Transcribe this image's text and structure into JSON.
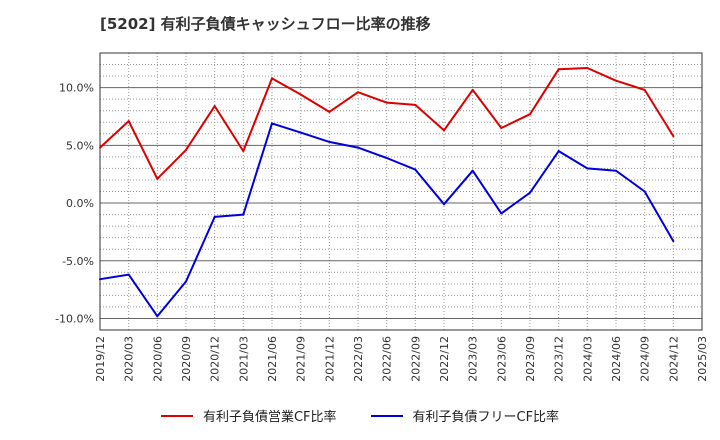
{
  "chart_data": {
    "type": "line",
    "title": "[5202]  有利子負債キャッシュフロー比率の推移",
    "xlabel": "",
    "ylabel": "",
    "x": [
      "2019/12",
      "2020/03",
      "2020/06",
      "2020/09",
      "2020/12",
      "2021/03",
      "2021/06",
      "2021/09",
      "2021/12",
      "2022/03",
      "2022/06",
      "2022/09",
      "2022/12",
      "2023/03",
      "2023/06",
      "2023/09",
      "2023/12",
      "2024/03",
      "2024/06",
      "2024/09",
      "2024/12",
      "2025/03"
    ],
    "ylim": [
      -11,
      13
    ],
    "yticks": [
      10,
      5,
      0,
      -5,
      -10
    ],
    "ytick_labels": [
      "10.0%",
      "5.0%",
      "0.0%",
      "-5.0%",
      "-10.0%"
    ],
    "grid": true,
    "legend_position": "bottom",
    "series": [
      {
        "name": "有利子負債営業CF比率",
        "color": "#dd0000",
        "values": [
          4.8,
          7.1,
          2.1,
          4.6,
          8.4,
          4.5,
          10.8,
          9.4,
          7.9,
          9.6,
          8.7,
          8.5,
          6.3,
          9.8,
          6.5,
          7.7,
          11.6,
          11.7,
          10.6,
          9.8,
          5.8,
          null
        ]
      },
      {
        "name": "有利子負債フリーCF比率",
        "color": "#0000dd",
        "values": [
          -6.6,
          -6.2,
          -9.8,
          -6.8,
          -1.2,
          -1.0,
          6.9,
          6.1,
          5.3,
          4.8,
          3.9,
          2.9,
          -0.1,
          2.8,
          -0.9,
          0.9,
          4.5,
          3.0,
          2.8,
          1.0,
          -3.3,
          null
        ]
      }
    ]
  }
}
